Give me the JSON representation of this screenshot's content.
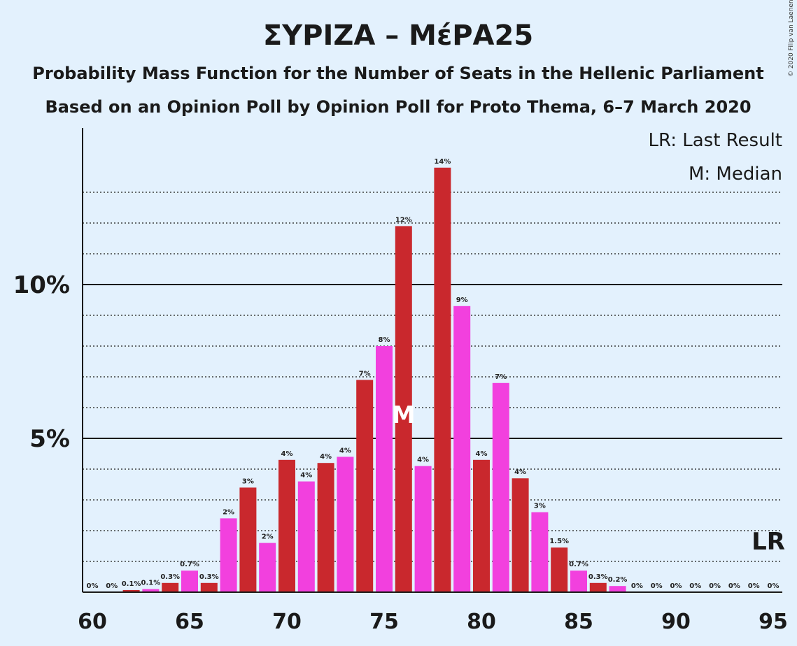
{
  "chart_data": {
    "type": "bar",
    "title": "ΣΥΡΙΖΑ – ΜέΡΑ25",
    "subtitle": "Probability Mass Function for the Number of Seats in the Hellenic Parliament",
    "subtitle2": "Based on an Opinion Poll by Opinion Poll for Proto Thema, 6–7 March 2020",
    "copyright": "© 2020 Filip van Laenen",
    "legend": [
      "LR: Last Result",
      "M: Median"
    ],
    "median_marker": "M",
    "last_result_marker": "LR",
    "median_seat": 76,
    "last_result_seat": 95,
    "xlim": [
      60,
      95
    ],
    "ylim": [
      0,
      15
    ],
    "x_ticks": [
      60,
      65,
      70,
      75,
      80,
      85,
      90,
      95
    ],
    "y_ticks": [
      {
        "value": 5,
        "label": "5%"
      },
      {
        "value": 10,
        "label": "10%"
      }
    ],
    "colors": {
      "red": "#c9282d",
      "magenta": "#f240de",
      "background": "#e3f1fd"
    },
    "bars": [
      {
        "seats": 60,
        "value": 0.0,
        "label": "0%",
        "color": "red"
      },
      {
        "seats": 61,
        "value": 0.0,
        "label": "0%",
        "color": "magenta"
      },
      {
        "seats": 62,
        "value": 0.07,
        "label": "0.1%",
        "color": "red"
      },
      {
        "seats": 63,
        "value": 0.1,
        "label": "0.1%",
        "color": "magenta"
      },
      {
        "seats": 64,
        "value": 0.3,
        "label": "0.3%",
        "color": "red"
      },
      {
        "seats": 65,
        "value": 0.7,
        "label": "0.7%",
        "color": "magenta"
      },
      {
        "seats": 66,
        "value": 0.3,
        "label": "0.3%",
        "color": "red"
      },
      {
        "seats": 67,
        "value": 2.4,
        "label": "2%",
        "color": "magenta"
      },
      {
        "seats": 68,
        "value": 3.4,
        "label": "3%",
        "color": "red"
      },
      {
        "seats": 69,
        "value": 1.6,
        "label": "2%",
        "color": "magenta"
      },
      {
        "seats": 70,
        "value": 4.3,
        "label": "4%",
        "color": "red"
      },
      {
        "seats": 71,
        "value": 3.6,
        "label": "4%",
        "color": "magenta"
      },
      {
        "seats": 72,
        "value": 4.2,
        "label": "4%",
        "color": "red"
      },
      {
        "seats": 73,
        "value": 4.4,
        "label": "4%",
        "color": "magenta"
      },
      {
        "seats": 74,
        "value": 6.9,
        "label": "7%",
        "color": "red"
      },
      {
        "seats": 75,
        "value": 8.0,
        "label": "8%",
        "color": "magenta"
      },
      {
        "seats": 76,
        "value": 11.9,
        "label": "12%",
        "color": "red"
      },
      {
        "seats": 77,
        "value": 4.1,
        "label": "4%",
        "color": "magenta"
      },
      {
        "seats": 78,
        "value": 13.8,
        "label": "14%",
        "color": "red"
      },
      {
        "seats": 79,
        "value": 9.3,
        "label": "9%",
        "color": "magenta"
      },
      {
        "seats": 80,
        "value": 4.3,
        "label": "4%",
        "color": "red"
      },
      {
        "seats": 81,
        "value": 6.8,
        "label": "7%",
        "color": "magenta"
      },
      {
        "seats": 82,
        "value": 3.7,
        "label": "4%",
        "color": "red"
      },
      {
        "seats": 83,
        "value": 2.6,
        "label": "3%",
        "color": "magenta"
      },
      {
        "seats": 84,
        "value": 1.45,
        "label": "1.5%",
        "color": "red"
      },
      {
        "seats": 85,
        "value": 0.7,
        "label": "0.7%",
        "color": "magenta"
      },
      {
        "seats": 86,
        "value": 0.3,
        "label": "0.3%",
        "color": "red"
      },
      {
        "seats": 87,
        "value": 0.2,
        "label": "0.2%",
        "color": "magenta"
      },
      {
        "seats": 88,
        "value": 0.0,
        "label": "0%",
        "color": "red"
      },
      {
        "seats": 89,
        "value": 0.0,
        "label": "0%",
        "color": "magenta"
      },
      {
        "seats": 90,
        "value": 0.0,
        "label": "0%",
        "color": "red"
      },
      {
        "seats": 91,
        "value": 0.0,
        "label": "0%",
        "color": "magenta"
      },
      {
        "seats": 92,
        "value": 0.0,
        "label": "0%",
        "color": "red"
      },
      {
        "seats": 93,
        "value": 0.0,
        "label": "0%",
        "color": "magenta"
      },
      {
        "seats": 94,
        "value": 0.0,
        "label": "0%",
        "color": "red"
      },
      {
        "seats": 95,
        "value": 0.0,
        "label": "0%",
        "color": "magenta"
      }
    ]
  }
}
